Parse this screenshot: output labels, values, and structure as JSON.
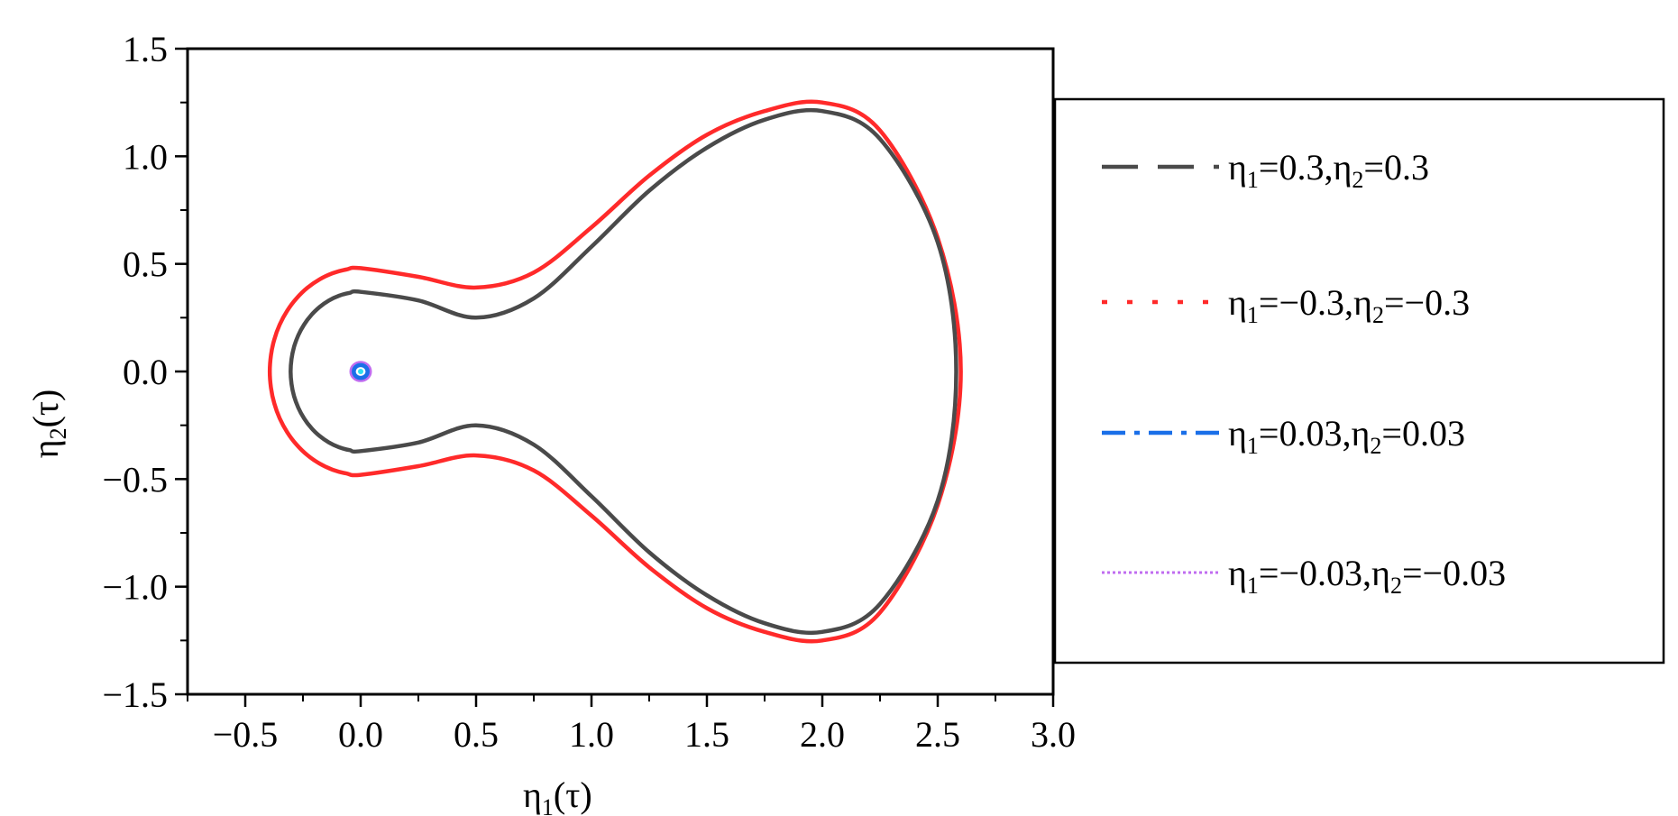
{
  "chart_data": {
    "type": "line",
    "title": "",
    "xlabel": {
      "base": "η",
      "sub": "1",
      "rest": "(τ)"
    },
    "ylabel": {
      "base": "η",
      "sub": "2",
      "rest": "(τ)"
    },
    "xlim": [
      -0.75,
      3.0
    ],
    "ylim": [
      -1.5,
      1.5
    ],
    "xticks": [
      -0.5,
      0.0,
      0.5,
      1.0,
      1.5,
      2.0,
      2.5,
      3.0
    ],
    "yticks": [
      -1.5,
      -1.0,
      -0.5,
      0.0,
      0.5,
      1.0,
      1.5
    ],
    "xtick_labels": [
      "−0.5",
      "0.0",
      "0.5",
      "1.0",
      "1.5",
      "2.0",
      "2.5",
      "3.0"
    ],
    "ytick_labels": [
      "−1.5",
      "−1.0",
      "−0.5",
      "0.0",
      "0.5",
      "1.0",
      "1.5"
    ],
    "grid": false,
    "legend_position": "right",
    "series": [
      {
        "name": "η1=0.3,η2=0.3",
        "label_parts": [
          [
            "η",
            "1",
            "=0.3,"
          ],
          [
            "η",
            "2",
            "=0.3"
          ]
        ],
        "color": "#4a4a4a",
        "dash": "dashed",
        "x": [
          0.0,
          0.25,
          0.5,
          0.75,
          1.0,
          1.25,
          1.5,
          1.75,
          2.0,
          2.25,
          2.5,
          2.58
        ],
        "y": [
          0.37,
          0.33,
          0.25,
          0.34,
          0.58,
          0.84,
          1.04,
          1.17,
          1.21,
          1.08,
          0.6,
          0.0
        ]
      },
      {
        "name": "η1=−0.3,η2=−0.3",
        "label_parts": [
          [
            "η",
            "1",
            "=−0.3,"
          ],
          [
            "η",
            "2",
            "=−0.3"
          ]
        ],
        "color": "#ff2a2a",
        "dash": "dotted",
        "x": [
          0.0,
          0.25,
          0.5,
          0.75,
          1.0,
          1.25,
          1.5,
          1.75,
          2.0,
          2.25,
          2.5,
          2.6
        ],
        "y": [
          0.48,
          0.44,
          0.39,
          0.46,
          0.67,
          0.91,
          1.1,
          1.21,
          1.25,
          1.12,
          0.62,
          0.0
        ]
      },
      {
        "name": "η1=0.03,η2=0.03",
        "label_parts": [
          [
            "η",
            "1",
            "=0.03,"
          ],
          [
            "η",
            "2",
            "=0.03"
          ]
        ],
        "color": "#1a6fe8",
        "dash": "dashdot",
        "radius": 0.03
      },
      {
        "name": "η1=−0.03,η2=−0.03",
        "label_parts": [
          [
            "η",
            "1",
            "=−0.03,"
          ],
          [
            "η",
            "2",
            "=−0.03"
          ]
        ],
        "color": "#c06cf0",
        "dash": "dotted",
        "radius": 0.04
      }
    ]
  }
}
